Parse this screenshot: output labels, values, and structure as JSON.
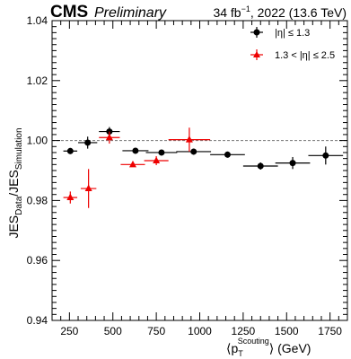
{
  "header": {
    "experiment": "CMS",
    "status": "Preliminary",
    "lumi_prefix": "34 fb",
    "lumi_sup": "−1",
    "lumi_suffix": ", 2022 (13.6 TeV)"
  },
  "chart_data": {
    "type": "scatter",
    "xlabel": {
      "open": "⟨p",
      "sub": "T",
      "sup": "Scouting",
      "close": "⟩ (GeV)"
    },
    "ylabel": {
      "main1": "JES",
      "sub1": "Data",
      "slash": "/JES",
      "sub2": "Simulation"
    },
    "xlim": [
      150,
      1850
    ],
    "ylim": [
      0.94,
      1.04
    ],
    "x_ticks": [
      250,
      500,
      750,
      1000,
      1250,
      1500,
      1750
    ],
    "y_ticks": [
      "0.94",
      "0.96",
      "0.98",
      "1.00",
      "1.02",
      "1.04"
    ],
    "y_tick_values": [
      0.94,
      0.96,
      0.98,
      1.0,
      1.02,
      1.04
    ],
    "reference_line": 1.0,
    "series": [
      {
        "name": "|η| ≤ 1.3",
        "marker": "circle",
        "color": "#000000",
        "points": [
          {
            "x": 255,
            "xerr": [
              40,
              40
            ],
            "y": 0.9965,
            "yerr": 0.001
          },
          {
            "x": 355,
            "xerr": [
              55,
              55
            ],
            "y": 0.9993,
            "yerr": 0.002
          },
          {
            "x": 480,
            "xerr": [
              60,
              60
            ],
            "y": 1.003,
            "yerr": 0.0015
          },
          {
            "x": 630,
            "xerr": [
              75,
              75
            ],
            "y": 0.9966,
            "yerr": 0.0008
          },
          {
            "x": 780,
            "xerr": [
              90,
              90
            ],
            "y": 0.996,
            "yerr": 0.0008
          },
          {
            "x": 965,
            "xerr": [
              100,
              100
            ],
            "y": 0.9963,
            "yerr": 0.001
          },
          {
            "x": 1160,
            "xerr": [
              100,
              100
            ],
            "y": 0.9953,
            "yerr": 0.001
          },
          {
            "x": 1350,
            "xerr": [
              100,
              100
            ],
            "y": 0.9915,
            "yerr": 0.0012
          },
          {
            "x": 1535,
            "xerr": [
              100,
              100
            ],
            "y": 0.9925,
            "yerr": 0.002
          },
          {
            "x": 1725,
            "xerr": [
              100,
              100
            ],
            "y": 0.995,
            "yerr": 0.003
          }
        ]
      },
      {
        "name": "1.3 < |η| ≤ 2.5",
        "marker": "triangle",
        "color": "#ee0000",
        "points": [
          {
            "x": 255,
            "xerr": [
              40,
              40
            ],
            "y": 0.981,
            "yerr": 0.002
          },
          {
            "x": 360,
            "xerr": [
              45,
              45
            ],
            "y": 0.984,
            "yerr": 0.0065
          },
          {
            "x": 480,
            "xerr": [
              60,
              60
            ],
            "y": 1.001,
            "yerr": 0.002
          },
          {
            "x": 615,
            "xerr": [
              70,
              70
            ],
            "y": 0.992,
            "yerr": 0.0008
          },
          {
            "x": 750,
            "xerr": [
              70,
              70
            ],
            "y": 0.9933,
            "yerr": 0.0015
          },
          {
            "x": 940,
            "xerr": [
              120,
              120
            ],
            "y": 1.0003,
            "yerr": 0.004
          }
        ]
      }
    ],
    "legend": {
      "position": "top-right"
    }
  }
}
